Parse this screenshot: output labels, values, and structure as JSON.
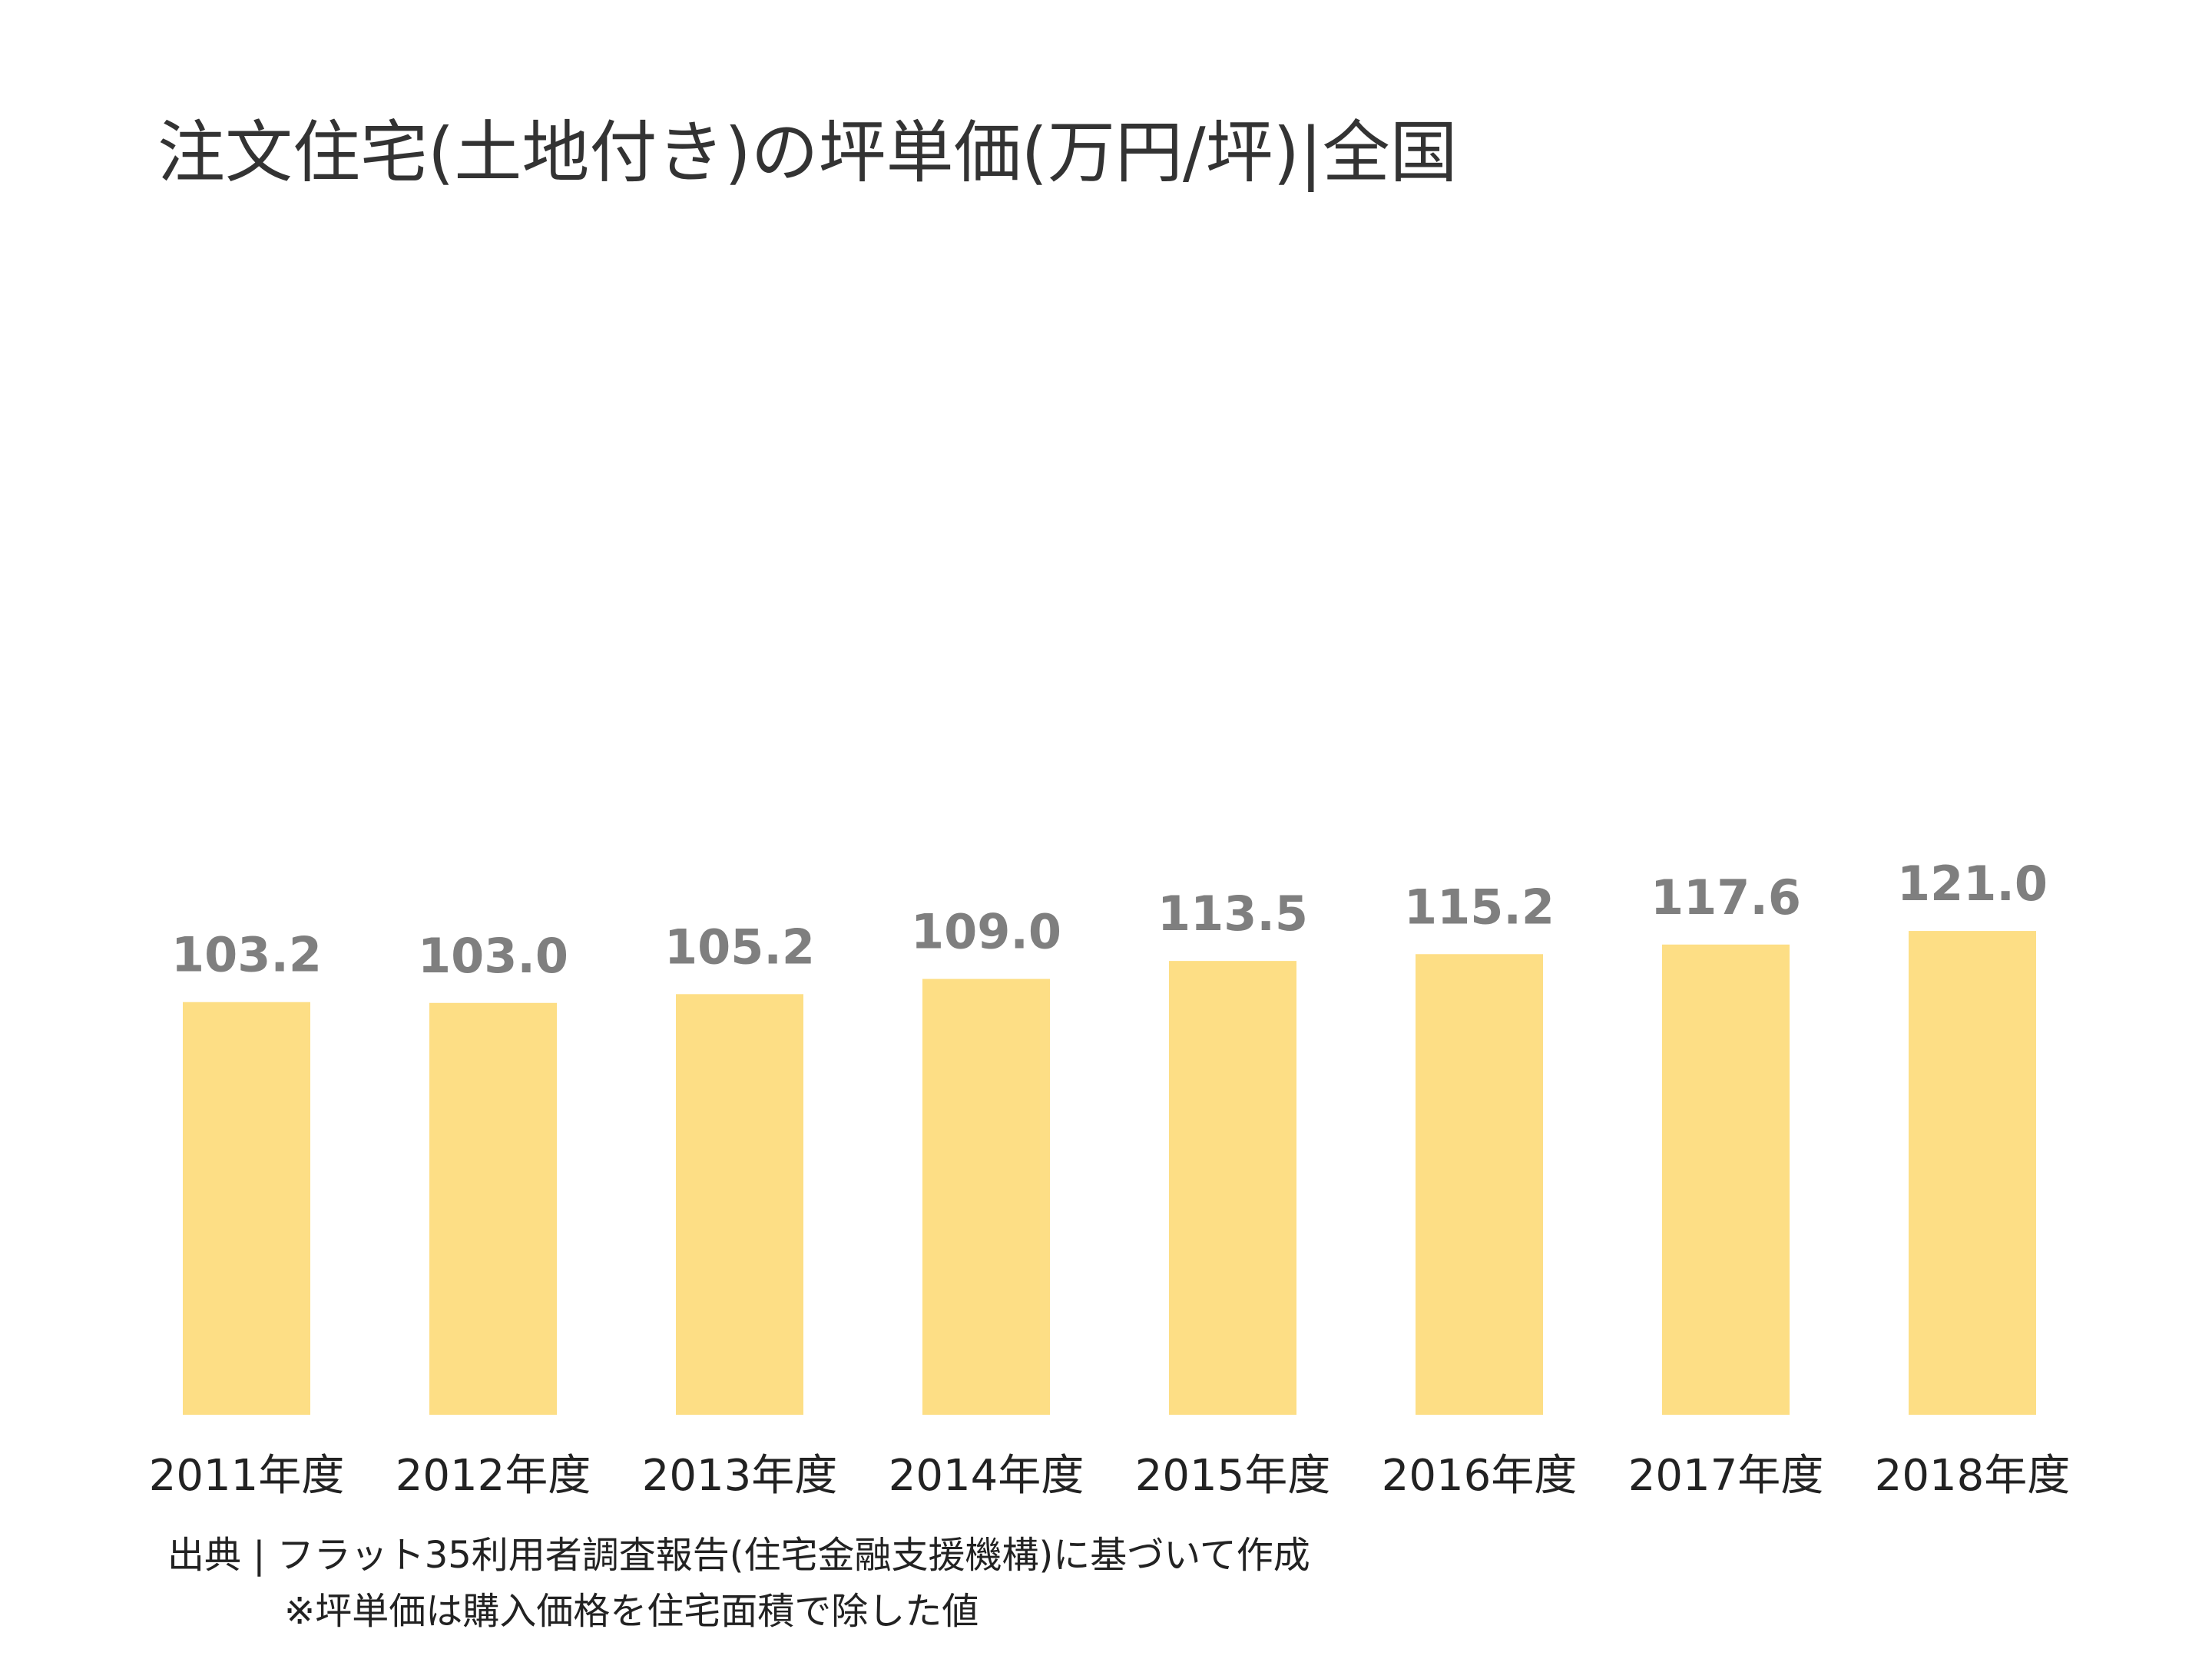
{
  "chart_data": {
    "type": "bar",
    "title": "注文住宅(土地付き)の坪単価(万円/坪)|全国",
    "categories": [
      "2011年度",
      "2012年度",
      "2013年度",
      "2014年度",
      "2015年度",
      "2016年度",
      "2017年度",
      "2018年度"
    ],
    "values": [
      103.2,
      103.0,
      105.2,
      109.0,
      113.5,
      115.2,
      117.6,
      121.0
    ],
    "value_labels": [
      "103.2",
      "103.0",
      "105.2",
      "109.0",
      "113.5",
      "115.2",
      "117.6",
      "121.0"
    ],
    "xlabel": "",
    "ylabel": "",
    "grid": false,
    "legend": "none",
    "colors": {
      "bar": "#FDDE85",
      "value_label": "#7F7F7F",
      "category_label": "#222222"
    }
  },
  "footer": {
    "source": "出典 | フラット35利用者調査報告(住宅金融支援機構)に基づいて作成",
    "note": "※坪単価は購入価格を住宅面積で除した値"
  }
}
